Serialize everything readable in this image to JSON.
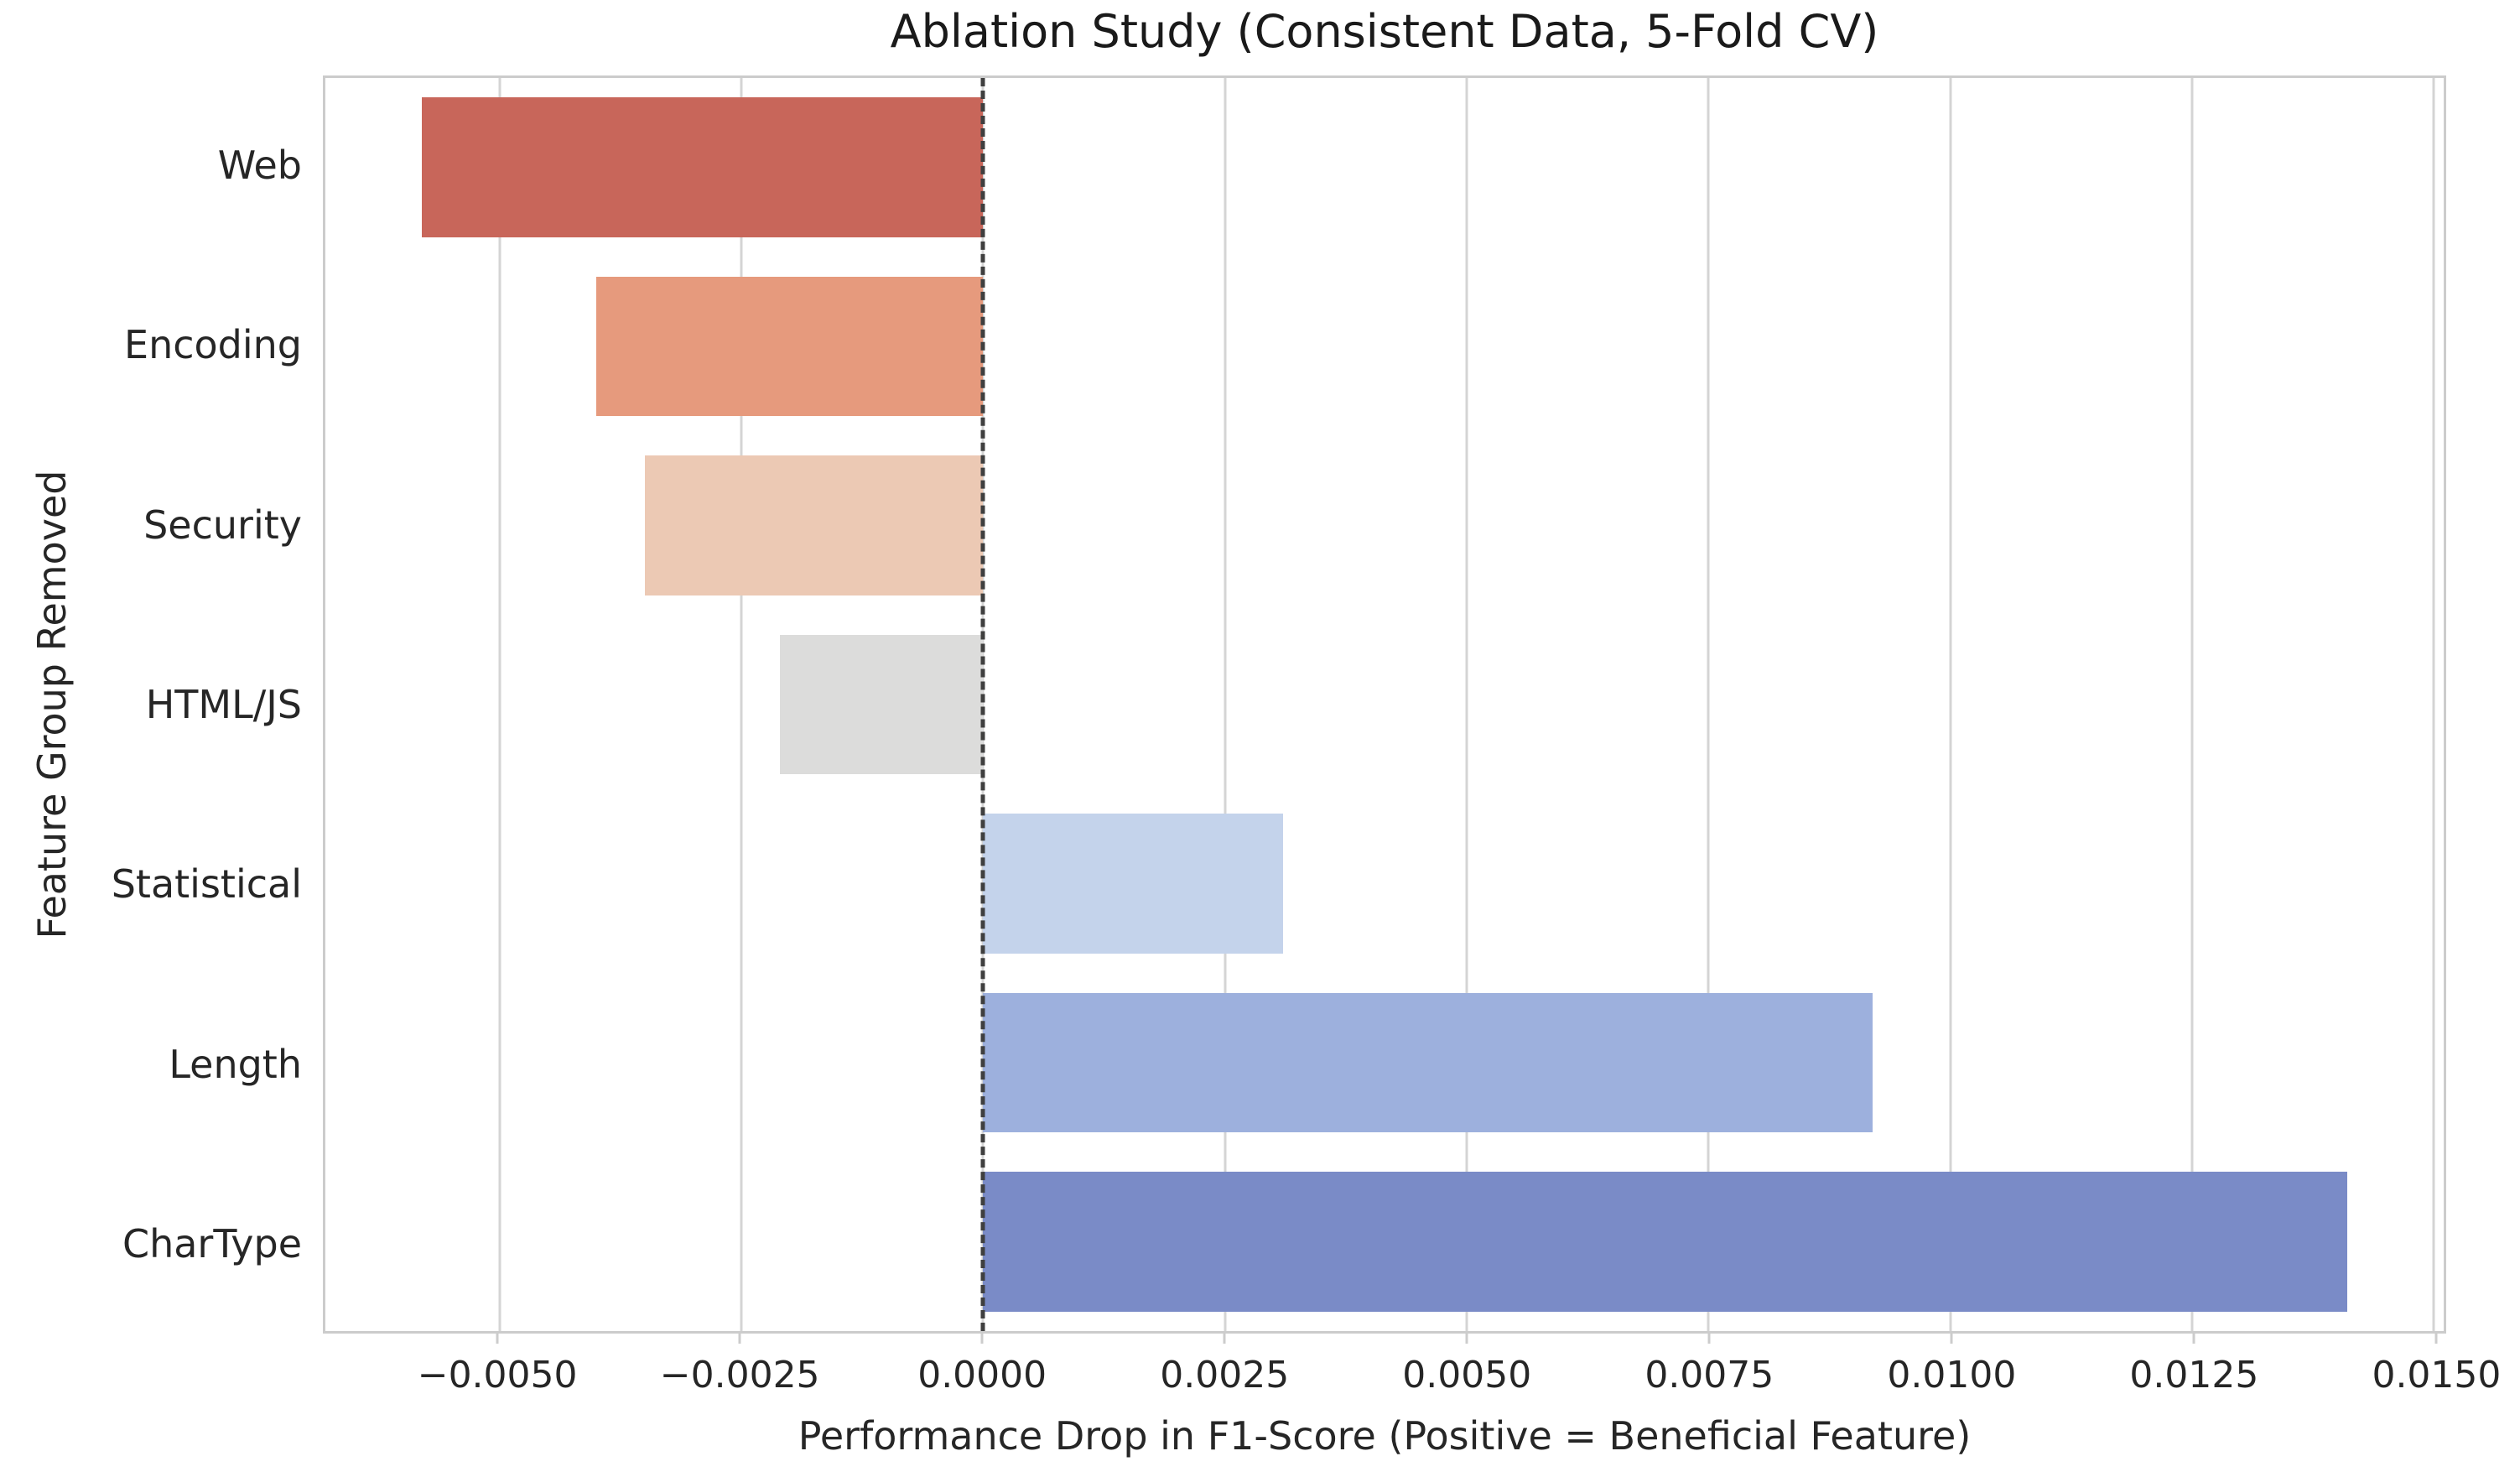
{
  "chart_data": {
    "type": "bar",
    "orientation": "horizontal",
    "title": "Ablation Study (Consistent Data, 5-Fold CV)",
    "xlabel": "Performance Drop in F1-Score (Positive = Beneficial Feature)",
    "ylabel": "Feature Group Removed",
    "categories": [
      "Web",
      "Encoding",
      "Security",
      "HTML/JS",
      "Statistical",
      "Length",
      "CharType"
    ],
    "values": [
      -0.0058,
      -0.004,
      -0.0035,
      -0.0021,
      0.0031,
      0.0092,
      0.0141
    ],
    "bar_colors": [
      "#c8665a",
      "#e69a7d",
      "#ecc9b4",
      "#dcdcdb",
      "#c4d3eb",
      "#9db0dd",
      "#7a8bc7"
    ],
    "xlim": [
      -0.0068,
      0.0151
    ],
    "x_ticks": [
      {
        "value": -0.005,
        "label": "−0.0050"
      },
      {
        "value": -0.0025,
        "label": "−0.0025"
      },
      {
        "value": 0.0,
        "label": "0.0000"
      },
      {
        "value": 0.0025,
        "label": "0.0025"
      },
      {
        "value": 0.005,
        "label": "0.0050"
      },
      {
        "value": 0.0075,
        "label": "0.0075"
      },
      {
        "value": 0.01,
        "label": "0.0100"
      },
      {
        "value": 0.0125,
        "label": "0.0125"
      },
      {
        "value": 0.015,
        "label": "0.0150"
      }
    ],
    "zero_line": {
      "value": 0,
      "style": "dashed",
      "color": "#3f3f3f"
    },
    "grid": true,
    "grid_color": "#d4d4d4",
    "bar_height_fraction": 0.78
  }
}
